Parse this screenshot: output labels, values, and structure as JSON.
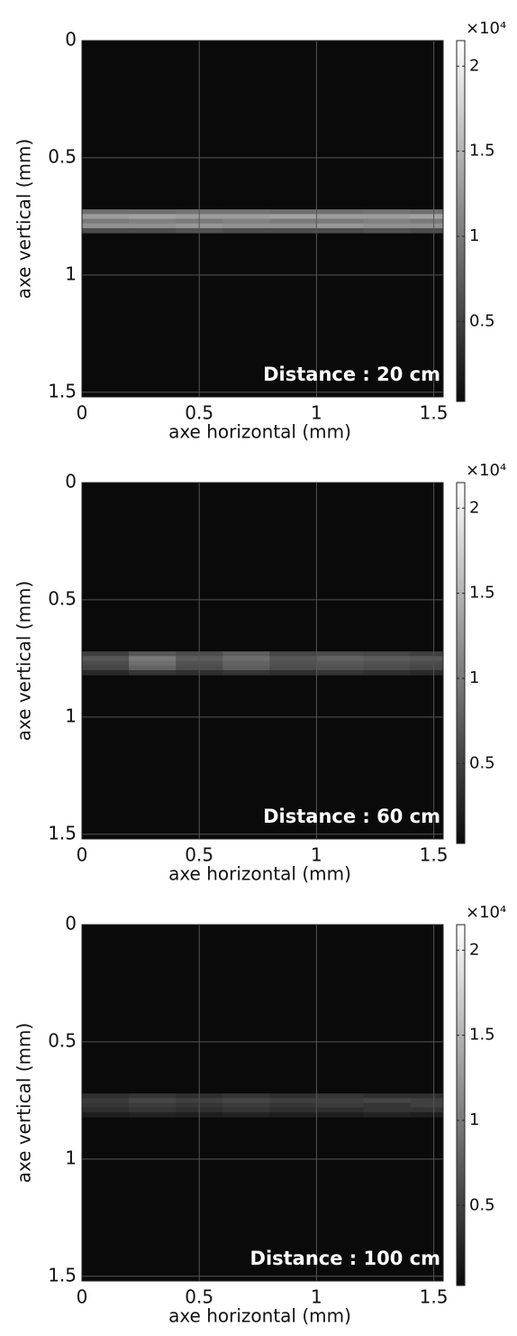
{
  "chart_data": [
    {
      "type": "heatmap",
      "xlabel": "axe horizontal (mm)",
      "ylabel": "axe vertical (mm)",
      "annotation": "Distance : 20 cm",
      "x": [
        0.1,
        0.3,
        0.5,
        0.7,
        0.9,
        1.1,
        1.3,
        1.5
      ],
      "y": [
        0.73,
        0.75,
        0.77,
        0.79,
        0.81
      ],
      "values": [
        [
          9000,
          9000,
          9500,
          9500,
          9000,
          9000,
          9500,
          9000
        ],
        [
          13000,
          13500,
          13000,
          13000,
          13500,
          13000,
          13000,
          13500
        ],
        [
          10000,
          10500,
          10000,
          10500,
          10000,
          10000,
          10500,
          10000
        ],
        [
          12000,
          12000,
          12500,
          12000,
          12000,
          12500,
          12000,
          12000
        ],
        [
          6000,
          6000,
          6500,
          6000,
          6000,
          6000,
          6500,
          6000
        ]
      ],
      "xlim": [
        0,
        1.54
      ],
      "ylim": [
        0,
        1.52
      ],
      "y_reversed": true,
      "xticks": [
        0,
        0.5,
        1,
        1.5
      ],
      "yticks": [
        0,
        0.5,
        1,
        1.5
      ],
      "grid": true,
      "colormap": "gray",
      "clim": [
        300,
        21500
      ],
      "cticks": [
        {
          "value": 5000,
          "label": "0.5"
        },
        {
          "value": 10000,
          "label": "1"
        },
        {
          "value": 15000,
          "label": "1.5"
        },
        {
          "value": 20000,
          "label": "2"
        }
      ],
      "colorbar_label": "×10⁴"
    },
    {
      "type": "heatmap",
      "xlabel": "axe horizontal (mm)",
      "ylabel": "axe vertical (mm)",
      "annotation": "Distance : 60 cm",
      "x": [
        0.1,
        0.3,
        0.5,
        0.7,
        0.9,
        1.1,
        1.3,
        1.5
      ],
      "y": [
        0.73,
        0.75,
        0.77,
        0.79,
        0.81
      ],
      "values": [
        [
          5000,
          7000,
          6000,
          7500,
          5500,
          6000,
          5500,
          5000
        ],
        [
          7000,
          10000,
          7500,
          9000,
          7000,
          8000,
          7500,
          7000
        ],
        [
          6000,
          9000,
          6500,
          8000,
          6500,
          7000,
          6500,
          6000
        ],
        [
          5500,
          8000,
          6000,
          7500,
          6000,
          6500,
          6000,
          5500
        ],
        [
          3000,
          4000,
          3500,
          4000,
          3500,
          4000,
          3500,
          3000
        ]
      ],
      "xlim": [
        0,
        1.54
      ],
      "ylim": [
        0,
        1.52
      ],
      "y_reversed": true,
      "xticks": [
        0,
        0.5,
        1,
        1.5
      ],
      "yticks": [
        0,
        0.5,
        1,
        1.5
      ],
      "grid": true,
      "colormap": "gray",
      "clim": [
        300,
        21500
      ],
      "cticks": [
        {
          "value": 5000,
          "label": "0.5"
        },
        {
          "value": 10000,
          "label": "1"
        },
        {
          "value": 15000,
          "label": "1.5"
        },
        {
          "value": 20000,
          "label": "2"
        }
      ],
      "colorbar_label": "×10⁴"
    },
    {
      "type": "heatmap",
      "xlabel": "axe horizontal (mm)",
      "ylabel": "axe vertical (mm)",
      "annotation": "Distance : 100 cm",
      "x": [
        0.1,
        0.3,
        0.5,
        0.7,
        0.9,
        1.1,
        1.3,
        1.5
      ],
      "y": [
        0.73,
        0.75,
        0.77,
        0.79,
        0.81
      ],
      "values": [
        [
          3500,
          4000,
          3500,
          4000,
          3500,
          4000,
          3500,
          3500
        ],
        [
          4500,
          5500,
          5000,
          5500,
          5000,
          5000,
          5500,
          5000
        ],
        [
          4000,
          4500,
          4000,
          4500,
          4000,
          4500,
          4000,
          5000
        ],
        [
          3500,
          4000,
          3500,
          4000,
          3500,
          3500,
          4000,
          4000
        ],
        [
          2000,
          2500,
          2000,
          2500,
          2000,
          2000,
          2500,
          2000
        ]
      ],
      "xlim": [
        0,
        1.54
      ],
      "ylim": [
        0,
        1.52
      ],
      "y_reversed": true,
      "xticks": [
        0,
        0.5,
        1,
        1.5
      ],
      "yticks": [
        0,
        0.5,
        1,
        1.5
      ],
      "grid": true,
      "colormap": "gray",
      "clim": [
        300,
        21500
      ],
      "cticks": [
        {
          "value": 5000,
          "label": "0.5"
        },
        {
          "value": 10000,
          "label": "1"
        },
        {
          "value": 15000,
          "label": "1.5"
        },
        {
          "value": 20000,
          "label": "2"
        }
      ],
      "colorbar_label": "×10⁴"
    }
  ]
}
